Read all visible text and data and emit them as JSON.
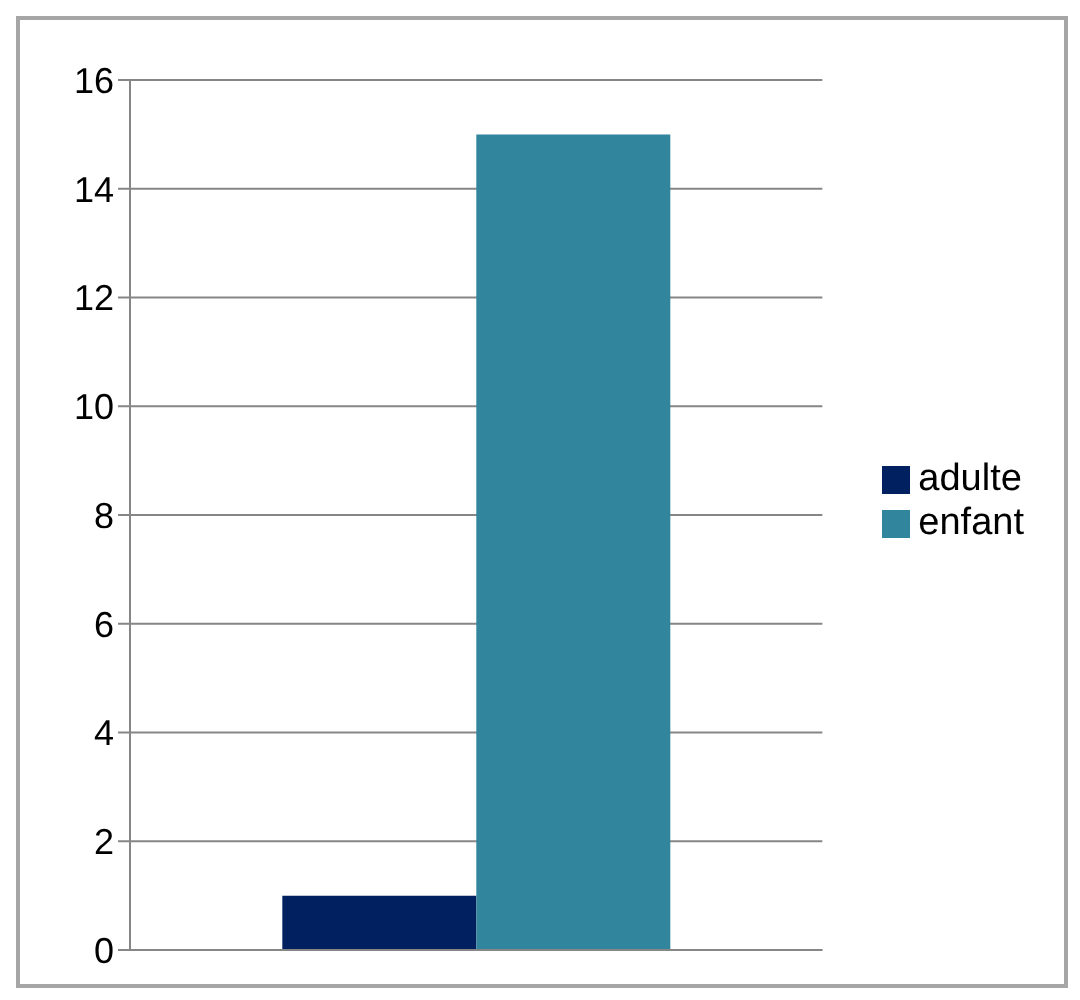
{
  "chart_data": {
    "type": "bar",
    "categories": [
      null
    ],
    "series": [
      {
        "name": "adulte",
        "color": "#002060",
        "values": [
          1
        ]
      },
      {
        "name": "enfant",
        "color": "#31859c",
        "values": [
          15
        ]
      }
    ],
    "ylim": [
      0,
      16
    ],
    "yticks": [
      0,
      2,
      4,
      6,
      8,
      10,
      12,
      14,
      16
    ],
    "grid": "y",
    "legend": "right"
  }
}
